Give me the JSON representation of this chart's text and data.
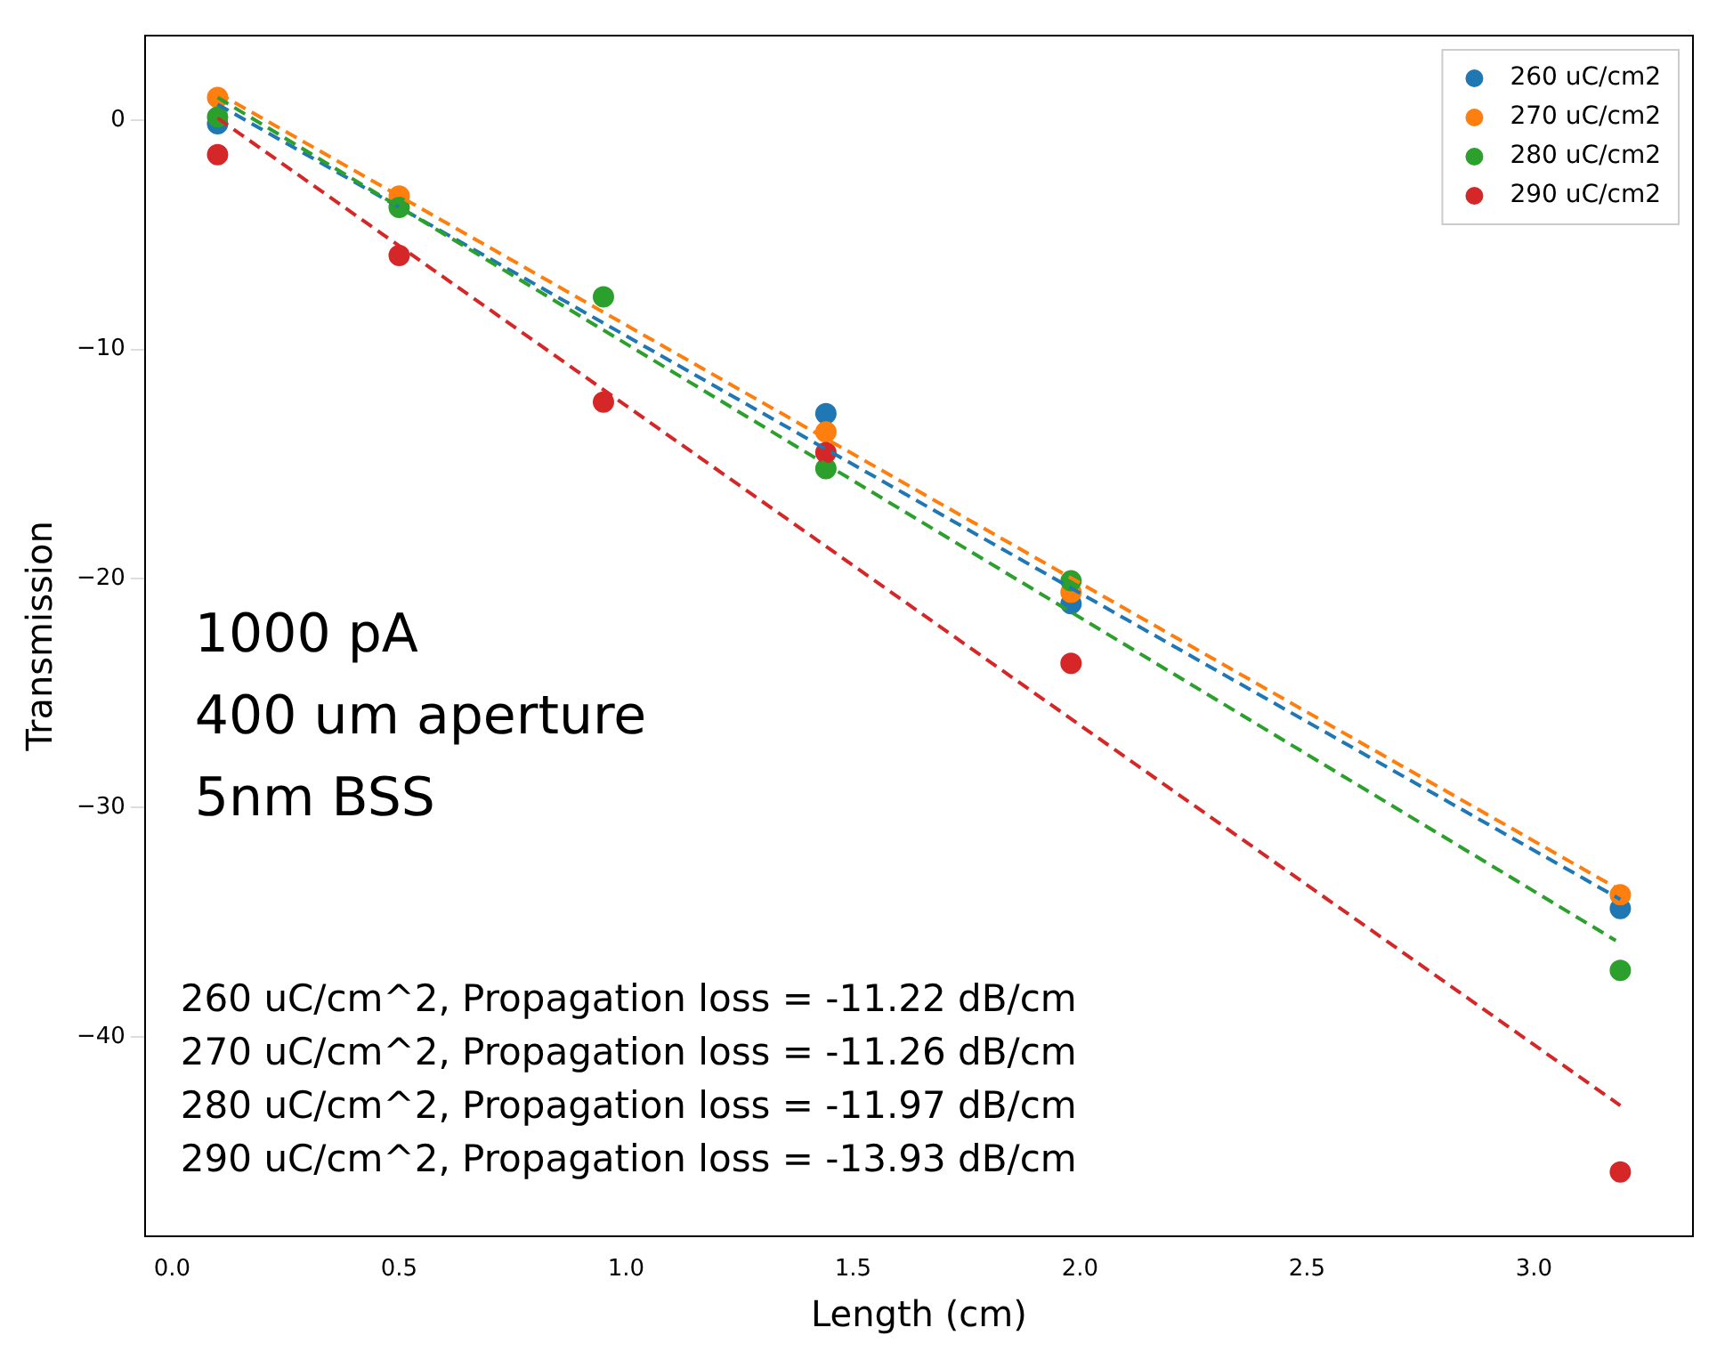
{
  "chart_data": {
    "type": "scatter",
    "xlabel": "Length (cm)",
    "ylabel": "Transmission",
    "x": [
      0.1,
      0.5,
      0.95,
      1.44,
      1.98,
      3.19
    ],
    "series": [
      {
        "name": "260 uC/cm2",
        "color": "#1f77b4",
        "values": [
          -0.15,
          null,
          null,
          -12.8,
          -21.1,
          -34.4
        ]
      },
      {
        "name": "270 uC/cm2",
        "color": "#ff7f0e",
        "values": [
          1.0,
          -3.3,
          null,
          -13.6,
          -20.6,
          -33.8
        ]
      },
      {
        "name": "280 uC/cm2",
        "color": "#2ca02c",
        "values": [
          0.15,
          -3.8,
          -7.7,
          -15.2,
          -20.1,
          -37.1
        ]
      },
      {
        "name": "290 uC/cm2",
        "color": "#d62728",
        "values": [
          -1.5,
          -5.9,
          -12.3,
          -14.5,
          -23.7,
          -45.9
        ]
      },
      {
        "type": "line",
        "line_style": "dashed",
        "marker": "none",
        "color": "#1f77b4",
        "x": [
          0.1,
          3.19
        ],
        "values": [
          0.7,
          -34.0
        ]
      },
      {
        "type": "line",
        "line_style": "dashed",
        "marker": "none",
        "color": "#ff7f0e",
        "x": [
          0.1,
          3.19
        ],
        "values": [
          1.2,
          -33.6
        ]
      },
      {
        "type": "line",
        "line_style": "dashed",
        "marker": "none",
        "color": "#2ca02c",
        "x": [
          0.1,
          3.18
        ],
        "values": [
          1.0,
          -35.8
        ]
      },
      {
        "type": "line",
        "line_style": "dashed",
        "marker": "none",
        "color": "#d62728",
        "x": [
          0.1,
          3.19
        ],
        "values": [
          0.1,
          -43.0
        ]
      }
    ],
    "xlim": [
      -0.06,
      3.35
    ],
    "ylim": [
      -48.7,
      3.7
    ],
    "xticks": [
      {
        "value": 0,
        "label": "0.0"
      },
      {
        "value": 0.5,
        "label": "0.5"
      },
      {
        "value": 1,
        "label": "1.0"
      },
      {
        "value": 1.5,
        "label": "1.5"
      },
      {
        "value": 2,
        "label": "2.0"
      },
      {
        "value": 2.5,
        "label": "2.5"
      },
      {
        "value": 3,
        "label": "3.0"
      }
    ],
    "yticks": [
      0,
      {
        "value": -10,
        "label": "−10"
      },
      {
        "value": -20,
        "label": "−20"
      },
      {
        "value": -30,
        "label": "−30"
      },
      {
        "value": -40,
        "label": "−40"
      }
    ],
    "grid": false,
    "legend": "top right",
    "marker": "circle",
    "annotations": [
      "1000 pA",
      "400 um aperture",
      "5nm BSS",
      "260 uC/cm^2, Propagation loss = -11.22 dB/cm",
      "270 uC/cm^2, Propagation loss = -11.26 dB/cm",
      "280 uC/cm^2, Propagation loss = -11.97 dB/cm",
      "290 uC/cm^2, Propagation loss = -13.93 dB/cm"
    ]
  }
}
